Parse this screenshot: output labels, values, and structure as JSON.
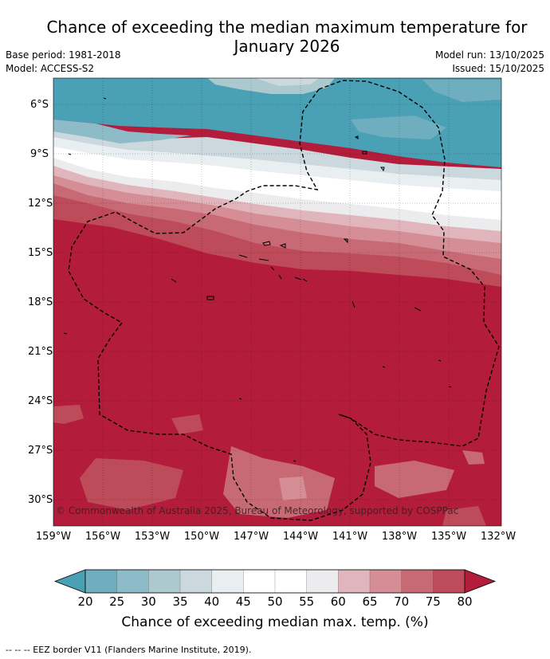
{
  "title": "Chance of exceeding the median maximum temperature for January 2026",
  "base_period": "Base period: 1981-2018",
  "model": "Model: ACCESS-S2",
  "model_run": "Model run: 13/10/2025",
  "issued": "Issued: 15/10/2025",
  "latitudes": [
    "6°S",
    "9°S",
    "12°S",
    "15°S",
    "18°S",
    "21°S",
    "24°S",
    "27°S",
    "30°S"
  ],
  "longitudes": [
    "159°W",
    "156°W",
    "153°W",
    "150°W",
    "147°W",
    "144°W",
    "141°W",
    "138°W",
    "135°W",
    "132°W"
  ],
  "copyright": "© Commonwealth of Australia 2025, Bureau of Meteorology, supported by COSPPac",
  "colorbar": {
    "ticks": [
      "20",
      "25",
      "30",
      "35",
      "40",
      "45",
      "50",
      "55",
      "60",
      "65",
      "70",
      "75",
      "80"
    ],
    "label": "Chance of exceeding median max. temp. (%)",
    "colors": [
      "#4aa0b4",
      "#6eaebf",
      "#8dbcc8",
      "#abc9cf",
      "#cbd8dd",
      "#e9eff1",
      "#ffffff",
      "#ffffff",
      "#ececee",
      "#e1b5bc",
      "#d58d96",
      "#c86a75",
      "#be4b59",
      "#b31d3b"
    ]
  },
  "footnote": "-- -- -- EEZ border V11 (Flanders Marine Institute, 2019).",
  "legend_items": {
    "eez_border": "dashed black line"
  }
}
